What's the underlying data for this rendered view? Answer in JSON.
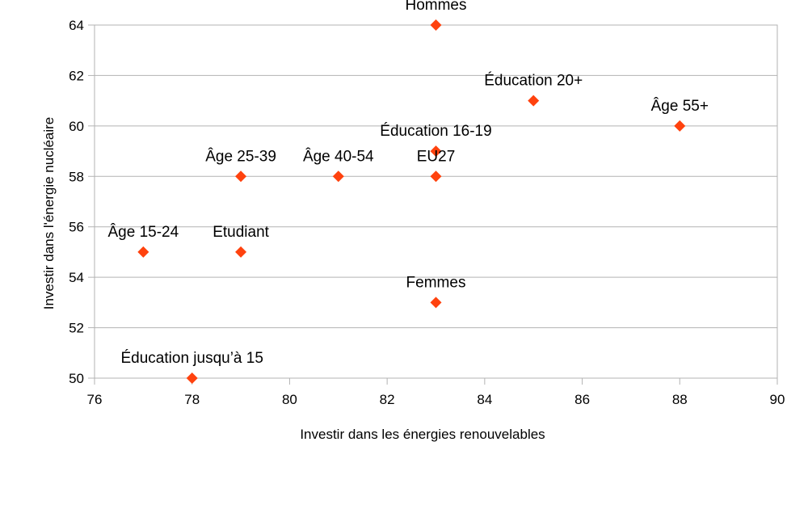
{
  "chart_data": {
    "type": "scatter",
    "title": "",
    "xlabel": "Investir dans les énergies renouvelables",
    "ylabel": "Investir dans l'énergie nucléaire",
    "xlim": [
      76,
      90
    ],
    "ylim": [
      50,
      64
    ],
    "xticks": [
      "76",
      "78",
      "80",
      "82",
      "84",
      "86",
      "88",
      "90"
    ],
    "yticks": [
      "50",
      "52",
      "54",
      "56",
      "58",
      "60",
      "62",
      "64"
    ],
    "grid": "horizontal",
    "legend": "none",
    "marker": "diamond",
    "marker_color": "#ff420e",
    "points": [
      {
        "label": "Hommes",
        "x": 83,
        "y": 64
      },
      {
        "label": "Éducation 20+",
        "x": 85,
        "y": 61
      },
      {
        "label": "Âge 55+",
        "x": 88,
        "y": 60
      },
      {
        "label": "Éducation 16-19",
        "x": 83,
        "y": 59
      },
      {
        "label": "Âge 25-39",
        "x": 79,
        "y": 58
      },
      {
        "label": "Âge 40-54",
        "x": 81,
        "y": 58
      },
      {
        "label": "EU27",
        "x": 83,
        "y": 58
      },
      {
        "label": "Âge 15-24",
        "x": 77,
        "y": 55
      },
      {
        "label": "Etudiant",
        "x": 79,
        "y": 55
      },
      {
        "label": "Femmes",
        "x": 83,
        "y": 53
      },
      {
        "label": "Éducation jusqu’à 15",
        "x": 78,
        "y": 50
      }
    ]
  }
}
